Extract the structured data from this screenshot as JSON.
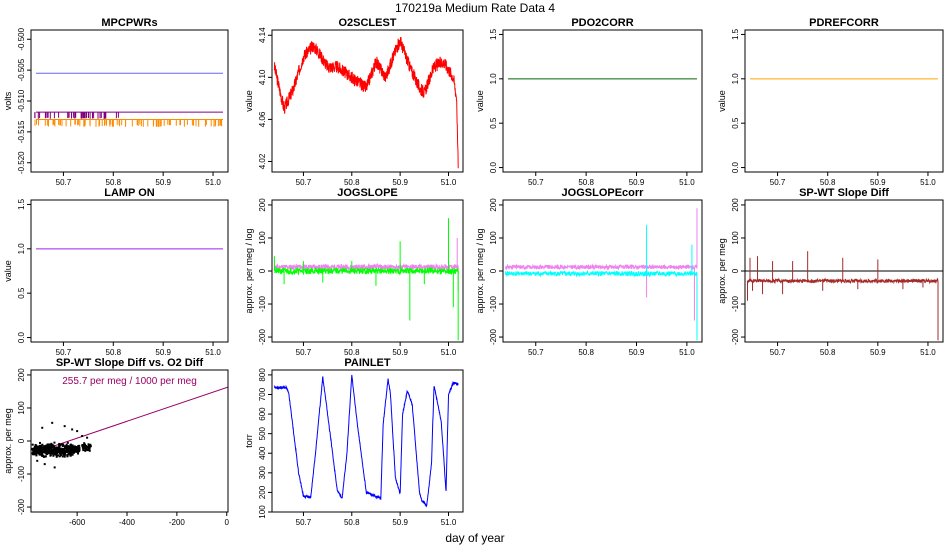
{
  "page": {
    "title": "170219a   Medium Rate Data 4",
    "x_caption": "day of year"
  },
  "chart_data": [
    {
      "id": "mpcpwrs",
      "type": "line",
      "title": "MPCPWRs",
      "ylabel": "volts",
      "xlim": [
        50.635,
        51.03
      ],
      "ylim": [
        -0.5215,
        -0.4985
      ],
      "xticks": [
        "50.7",
        "50.8",
        "50.9",
        "51.0"
      ],
      "yticks": [
        "-0.500",
        "-0.505",
        "-0.510",
        "-0.515",
        "-0.520"
      ],
      "series": [
        {
          "color": "#6666ff",
          "kind": "flat",
          "value": -0.5055
        },
        {
          "color": "#800080",
          "kind": "flat",
          "value": -0.5118
        },
        {
          "color": "#ff8c00",
          "kind": "flat",
          "value": -0.513
        },
        {
          "color": "#800080",
          "kind": "spikes",
          "base": -0.5118,
          "range": [
            50.64,
            50.82
          ],
          "count": 42,
          "min": -0.0011,
          "max": -0.0009
        },
        {
          "color": "#ff8c00",
          "kind": "spikes",
          "base": -0.513,
          "range": [
            50.64,
            51.02
          ],
          "count": 90,
          "min": -0.0012,
          "max": -0.0008
        }
      ]
    },
    {
      "id": "o2sclest",
      "type": "line",
      "title": "O2SCLEST",
      "ylabel": "value",
      "xlim": [
        50.635,
        51.03
      ],
      "ylim": [
        4.01,
        4.145
      ],
      "xticks": [
        "50.7",
        "50.8",
        "50.9",
        "51.0"
      ],
      "yticks": [
        "4.02",
        "4.06",
        "4.10",
        "4.14"
      ],
      "series": [
        {
          "color": "#ff0000",
          "kind": "band",
          "noise": 0.006,
          "seed": 3,
          "x": [
            50.64,
            50.66,
            50.68,
            50.7,
            50.72,
            50.73,
            50.75,
            50.77,
            50.8,
            50.83,
            50.85,
            50.87,
            50.89,
            50.9,
            50.92,
            50.94,
            50.95,
            50.97,
            50.99,
            51.01,
            51.017,
            51.02
          ],
          "y": [
            4.11,
            4.07,
            4.09,
            4.12,
            4.13,
            4.125,
            4.11,
            4.11,
            4.1,
            4.09,
            4.115,
            4.1,
            4.125,
            4.135,
            4.11,
            4.09,
            4.085,
            4.11,
            4.115,
            4.1,
            4.08,
            4.015
          ]
        }
      ]
    },
    {
      "id": "pdo2corr",
      "type": "line",
      "title": "PDO2CORR",
      "ylabel": "value",
      "xlim": [
        50.635,
        51.03
      ],
      "ylim": [
        -0.05,
        1.55
      ],
      "xticks": [
        "50.7",
        "50.8",
        "50.9",
        "51.0"
      ],
      "yticks": [
        "0.0",
        "0.5",
        "1.0",
        "1.5"
      ],
      "series": [
        {
          "color": "#006400",
          "kind": "flat",
          "value": 1.0
        }
      ]
    },
    {
      "id": "pdrefcorr",
      "type": "line",
      "title": "PDREFCORR",
      "ylabel": "value",
      "xlim": [
        50.635,
        51.03
      ],
      "ylim": [
        -0.05,
        1.55
      ],
      "xticks": [
        "50.7",
        "50.8",
        "50.9",
        "51.0"
      ],
      "yticks": [
        "0.0",
        "0.5",
        "1.0",
        "1.5"
      ],
      "series": [
        {
          "color": "#ffa500",
          "kind": "flat",
          "value": 1.0
        }
      ]
    },
    {
      "id": "lampon",
      "type": "line",
      "title": "LAMP ON",
      "ylabel": "value",
      "xlim": [
        50.635,
        51.03
      ],
      "ylim": [
        -0.05,
        1.55
      ],
      "xticks": [
        "50.7",
        "50.8",
        "50.9",
        "51.0"
      ],
      "yticks": [
        "0.0",
        "0.5",
        "1.0",
        "1.5"
      ],
      "series": [
        {
          "color": "#a020f0",
          "kind": "flat",
          "value": 1.0
        }
      ]
    },
    {
      "id": "jogslope",
      "type": "line",
      "title": "JOGSLOPE",
      "ylabel": "approx. per meg / log",
      "xlim": [
        50.635,
        51.03
      ],
      "ylim": [
        -215,
        215
      ],
      "xticks": [
        "50.7",
        "50.8",
        "50.9",
        "51.0"
      ],
      "yticks": [
        "-200",
        "-100",
        "0",
        "100",
        "200"
      ],
      "series": [
        {
          "color": "#ee82ee",
          "kind": "noise",
          "base": 12,
          "noise": 8,
          "seed": 11,
          "spikes": [
            [
              51.018,
              100
            ],
            [
              51.02,
              -60
            ]
          ]
        },
        {
          "color": "#00ff00",
          "kind": "noise",
          "base": 0,
          "noise": 9,
          "seed": 21,
          "spikes": [
            [
              50.64,
              45
            ],
            [
              50.66,
              -40
            ],
            [
              50.7,
              30
            ],
            [
              50.74,
              -35
            ],
            [
              50.8,
              30
            ],
            [
              50.85,
              -45
            ],
            [
              50.9,
              90
            ],
            [
              50.92,
              -150
            ],
            [
              50.95,
              -40
            ],
            [
              51.0,
              160
            ],
            [
              51.01,
              -110
            ],
            [
              51.02,
              -210
            ]
          ]
        }
      ]
    },
    {
      "id": "jogslopecorr",
      "type": "line",
      "title": "JOGSLOPEcorr",
      "ylabel": "approx. per meg / log",
      "xlim": [
        50.635,
        51.03
      ],
      "ylim": [
        -215,
        215
      ],
      "xticks": [
        "50.7",
        "50.8",
        "50.9",
        "51.0"
      ],
      "yticks": [
        "-200",
        "-100",
        "0",
        "100",
        "200"
      ],
      "series": [
        {
          "color": "#ee82ee",
          "kind": "noise",
          "base": 12,
          "noise": 6,
          "seed": 31,
          "spikes": [
            [
              50.92,
              -80
            ],
            [
              51.015,
              -150
            ],
            [
              51.02,
              190
            ]
          ]
        },
        {
          "color": "#00ffff",
          "kind": "noise",
          "base": -8,
          "noise": 7,
          "seed": 41,
          "spikes": [
            [
              50.92,
              140
            ],
            [
              51.01,
              80
            ],
            [
              51.02,
              -210
            ]
          ]
        }
      ]
    },
    {
      "id": "spwtslopediff",
      "type": "line",
      "title": "SP-WT Slope Diff",
      "ylabel": "approx. per meg",
      "xlim": [
        50.635,
        51.03
      ],
      "ylim": [
        -215,
        215
      ],
      "xticks": [
        "50.7",
        "50.8",
        "50.9",
        "51.0"
      ],
      "yticks": [
        "-200",
        "-100",
        "0",
        "100",
        "200"
      ],
      "series": [
        {
          "color": "#a52a2a",
          "kind": "noise",
          "base": -30,
          "noise": 5,
          "seed": 51,
          "spikes": [
            [
              50.64,
              -90
            ],
            [
              50.645,
              40
            ],
            [
              50.65,
              -60
            ],
            [
              50.66,
              45
            ],
            [
              50.67,
              -70
            ],
            [
              50.69,
              30
            ],
            [
              50.71,
              -70
            ],
            [
              50.73,
              30
            ],
            [
              50.76,
              60
            ],
            [
              50.79,
              -60
            ],
            [
              50.83,
              40
            ],
            [
              50.86,
              -55
            ],
            [
              50.9,
              35
            ],
            [
              50.95,
              -55
            ],
            [
              50.99,
              -50
            ],
            [
              51.02,
              -210
            ]
          ]
        }
      ],
      "hline": {
        "value": 0,
        "color": "#000000"
      }
    },
    {
      "id": "spwtvso2",
      "type": "scatter",
      "title": "SP-WT Slope Diff vs. O2 Diff",
      "ylabel": "approx. per meg",
      "xlim": [
        -785,
        5
      ],
      "ylim": [
        -215,
        215
      ],
      "xticks": [
        "-600",
        "-400",
        "-200",
        "0"
      ],
      "xtick_values": [
        -600,
        -400,
        -200,
        0
      ],
      "yticks": [
        "-200",
        "-100",
        "0",
        "100",
        "200"
      ],
      "annotation": "255.7 per meg / 1000 per meg",
      "fit": {
        "slope": 0.2557,
        "intercept": 162,
        "color": "#990066"
      },
      "clusters": [
        {
          "x": [
            -780,
            -620
          ],
          "y": -28,
          "spread": 12,
          "n": 380,
          "seed": 61
        },
        {
          "x": [
            -620,
            -590
          ],
          "y": -24,
          "spread": 8,
          "n": 60,
          "seed": 71
        },
        {
          "x": [
            -580,
            -545
          ],
          "y": -20,
          "spread": 8,
          "n": 50,
          "seed": 81
        }
      ],
      "outliers": [
        [
          -700,
          55
        ],
        [
          -650,
          45
        ],
        [
          -620,
          35
        ],
        [
          -600,
          30
        ],
        [
          -560,
          10
        ],
        [
          -730,
          -70
        ],
        [
          -760,
          -60
        ],
        [
          -690,
          -80
        ],
        [
          -740,
          40
        ],
        [
          -580,
          15
        ]
      ]
    },
    {
      "id": "painlet",
      "type": "line",
      "title": "PAINLET",
      "ylabel": "torr",
      "xlim": [
        50.635,
        51.03
      ],
      "ylim": [
        100,
        825
      ],
      "xticks": [
        "50.7",
        "50.8",
        "50.9",
        "51.0"
      ],
      "yticks": [
        "100",
        "200",
        "300",
        "400",
        "500",
        "600",
        "700",
        "800"
      ],
      "series": [
        {
          "color": "#0000ff",
          "kind": "band",
          "noise": 6,
          "seed": 91,
          "x": [
            50.64,
            50.665,
            50.67,
            50.69,
            50.7,
            50.715,
            50.725,
            50.74,
            50.75,
            50.77,
            50.78,
            50.79,
            50.8,
            50.81,
            50.83,
            50.86,
            50.865,
            50.875,
            50.88,
            50.89,
            50.9,
            50.905,
            50.915,
            50.925,
            50.94,
            50.945,
            50.955,
            50.965,
            50.97,
            50.985,
            50.995,
            51.0,
            51.01,
            51.02
          ],
          "y": [
            735,
            735,
            700,
            300,
            180,
            175,
            400,
            790,
            600,
            210,
            170,
            400,
            800,
            580,
            200,
            170,
            550,
            780,
            700,
            280,
            190,
            600,
            720,
            650,
            200,
            160,
            130,
            350,
            750,
            560,
            200,
            700,
            760,
            755
          ]
        }
      ]
    }
  ]
}
